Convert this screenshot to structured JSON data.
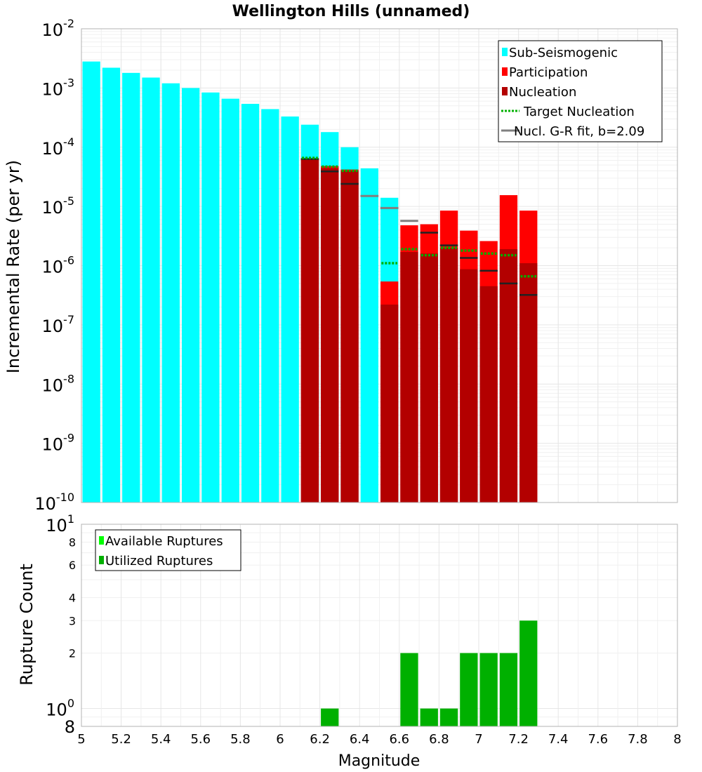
{
  "title": "Wellington Hills (unnamed)",
  "xlabel": "Magnitude",
  "top_ylabel": "Incremental Rate (per yr)",
  "bottom_ylabel": "Rupture Count",
  "colors": {
    "sub_seismogenic": "#00ffff",
    "participation": "#ff0000",
    "nucleation": "#b30000",
    "target": "#00b000",
    "gr_fit": "#808080",
    "rate_marker": "#222222",
    "available": "#00ff00",
    "utilized": "#00b000",
    "grid": "#e6e6e6"
  },
  "chart_data": [
    {
      "type": "bar",
      "panel": "top",
      "yscale": "log",
      "xlim": [
        5,
        8
      ],
      "ylim": [
        1e-10,
        0.01
      ],
      "ylabel": "Incremental Rate (per yr)",
      "y_tick_labels": [
        {
          "base": "10",
          "exp": "-2"
        },
        {
          "base": "10",
          "exp": "-3"
        },
        {
          "base": "10",
          "exp": "-4"
        },
        {
          "base": "10",
          "exp": "-5"
        },
        {
          "base": "10",
          "exp": "-6"
        },
        {
          "base": "10",
          "exp": "-7"
        },
        {
          "base": "10",
          "exp": "-8"
        },
        {
          "base": "10",
          "exp": "-9"
        },
        {
          "base": "10",
          "exp": "-10"
        }
      ],
      "bin_width": 0.1,
      "sub_seismogenic": {
        "x": [
          5.05,
          5.15,
          5.25,
          5.35,
          5.45,
          5.55,
          5.65,
          5.75,
          5.85,
          5.95,
          6.05,
          6.15,
          6.25,
          6.35,
          6.45,
          6.55
        ],
        "y": [
          0.0028,
          0.0022,
          0.0018,
          0.0015,
          0.0012,
          0.001,
          0.00084,
          0.00066,
          0.00054,
          0.00044,
          0.00033,
          0.00024,
          0.00018,
          0.0001,
          4.4e-05,
          1.4e-05
        ]
      },
      "participation": {
        "x": [
          6.15,
          6.25,
          6.35,
          6.55,
          6.65,
          6.75,
          6.85,
          6.95,
          7.05,
          7.15,
          7.25
        ],
        "y": [
          6.5e-05,
          4.8e-05,
          4.2e-05,
          5.4e-07,
          4.8e-06,
          5e-06,
          8.5e-06,
          3.9e-06,
          2.6e-06,
          1.55e-05,
          8.5e-06
        ]
      },
      "nucleation": {
        "x": [
          6.15,
          6.25,
          6.35,
          6.55,
          6.65,
          6.75,
          6.85,
          6.95,
          7.05,
          7.15,
          7.25
        ],
        "y": [
          6.2e-05,
          4.4e-05,
          4e-05,
          2.2e-07,
          1.7e-06,
          1.6e-06,
          2e-06,
          8.7e-07,
          4.5e-07,
          1.9e-06,
          1.1e-06
        ]
      },
      "target_nucleation": {
        "x": [
          6.15,
          6.25,
          6.35,
          6.55,
          6.65,
          6.75,
          6.85,
          6.95,
          7.05,
          7.15,
          7.25
        ],
        "y": [
          6.6e-05,
          4.7e-05,
          4e-05,
          1.1e-06,
          1.9e-06,
          1.5e-06,
          2e-06,
          1.8e-06,
          1.6e-06,
          1.5e-06,
          6.6e-07
        ]
      },
      "rate_markers": {
        "x": [
          6.15,
          6.25,
          6.35,
          6.45,
          6.55,
          6.75,
          6.85,
          6.95,
          7.05,
          7.15,
          7.25
        ],
        "y": [
          6.3e-05,
          3.9e-05,
          2.4e-05,
          1.5e-05,
          9.4e-06,
          3.6e-06,
          2.2e-06,
          1.35e-06,
          8.2e-07,
          5e-07,
          3.2e-07
        ]
      },
      "gr_fit": {
        "x": [
          6.45,
          6.55,
          6.65
        ],
        "y": [
          1.5e-05,
          9.4e-06,
          5.7e-06
        ]
      },
      "legend": {
        "position": "top-right",
        "entries": [
          {
            "label": "Sub-Seismogenic",
            "color": "#00ffff",
            "style": "box"
          },
          {
            "label": "Participation",
            "color": "#ff0000",
            "style": "box"
          },
          {
            "label": "Nucleation",
            "color": "#b30000",
            "style": "box"
          },
          {
            "label": "Target Nucleation",
            "color": "#00b000",
            "style": "dotted"
          },
          {
            "label": "Nucl. G-R fit, b=2.09",
            "color": "#808080",
            "style": "line"
          }
        ]
      }
    },
    {
      "type": "bar",
      "panel": "bottom",
      "yscale": "log",
      "xlim": [
        5,
        8
      ],
      "ylim": [
        0.8,
        10
      ],
      "ylabel": "Rupture Count",
      "xlabel": "Magnitude",
      "x_ticks": [
        "5",
        "5.2",
        "5.4",
        "5.6",
        "5.8",
        "6",
        "6.2",
        "6.4",
        "6.6",
        "6.8",
        "7",
        "7.2",
        "7.4",
        "7.6",
        "7.8",
        "8"
      ],
      "y_minor_labels": [
        {
          "value": 2,
          "label": "2"
        },
        {
          "value": 3,
          "label": "3"
        },
        {
          "value": 4,
          "label": "4"
        },
        {
          "value": 6,
          "label": "6"
        },
        {
          "value": 8,
          "label": "8"
        }
      ],
      "y_major_labels": [
        {
          "value": 1,
          "base": "10",
          "exp": "0"
        },
        {
          "value": 10,
          "base": "10",
          "exp": "1"
        }
      ],
      "y_bottom_label": "8",
      "bin_width": 0.1,
      "utilized": {
        "x": [
          6.25,
          6.65,
          6.75,
          6.85,
          6.95,
          7.05,
          7.15,
          7.25
        ],
        "y": [
          1,
          2,
          1,
          1,
          2,
          2,
          2,
          3
        ]
      },
      "legend": {
        "position": "top-left",
        "entries": [
          {
            "label": "Available Ruptures",
            "color": "#00ff00"
          },
          {
            "label": "Utilized Ruptures",
            "color": "#00b000"
          }
        ]
      }
    }
  ]
}
